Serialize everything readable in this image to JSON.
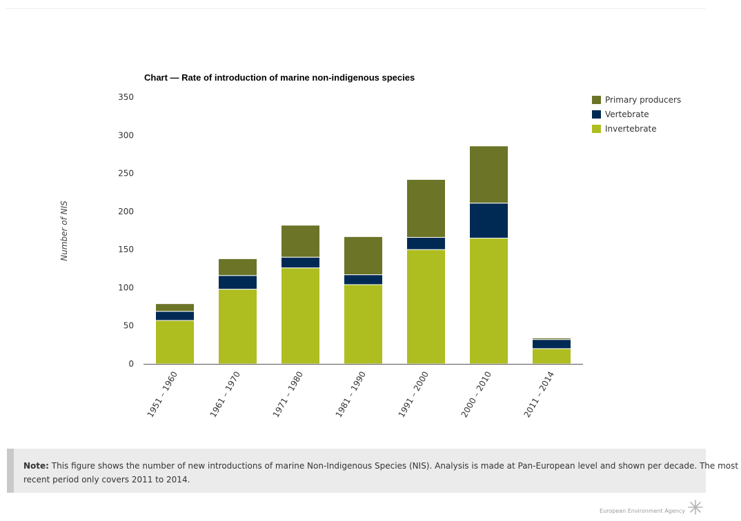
{
  "chart_data": {
    "type": "bar",
    "stacked": true,
    "title": "Chart — Rate of introduction of marine non-indigenous species",
    "ylabel": "Number of NIS",
    "xlabel": "",
    "ylim": [
      0,
      350
    ],
    "yticks": [
      0,
      50,
      100,
      150,
      200,
      250,
      300,
      350
    ],
    "categories": [
      "1951 – 1960",
      "1961 – 1970",
      "1971 – 1980",
      "1981 – 1990",
      "1991 – 2000",
      "2000 – 2010",
      "2011 – 2014"
    ],
    "series": [
      {
        "name": "Invertebrate",
        "color": "#aebd1f",
        "values": [
          57,
          98,
          126,
          104,
          150,
          165,
          20
        ]
      },
      {
        "name": "Vertebrate",
        "color": "#002a54",
        "values": [
          12,
          18,
          14,
          13,
          16,
          46,
          12
        ]
      },
      {
        "name": "Primary producers",
        "color": "#6b7427",
        "values": [
          10,
          22,
          42,
          50,
          76,
          75,
          2
        ]
      }
    ],
    "legend_order": [
      "Primary producers",
      "Vertebrate",
      "Invertebrate"
    ],
    "legend_position": "top-right",
    "grid": false
  },
  "note": {
    "label": "Note:",
    "text": " This figure shows the number of new introductions of marine Non-Indigenous Species (NIS). Analysis is made at Pan-European level and shown per decade. The most recent period only covers 2011 to 2014."
  },
  "footer": {
    "agency": "European Environment Agency",
    "logo_icon": "eea-sunburst-icon"
  }
}
